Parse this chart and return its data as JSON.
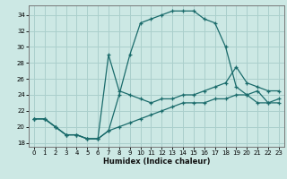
{
  "title": "",
  "xlabel": "Humidex (Indice chaleur)",
  "background_color": "#cce8e4",
  "grid_color": "#aacfcc",
  "line_color": "#1a6b6b",
  "xlim": [
    -0.5,
    23.5
  ],
  "ylim": [
    17.5,
    35.2
  ],
  "xticks": [
    0,
    1,
    2,
    3,
    4,
    5,
    6,
    7,
    8,
    9,
    10,
    11,
    12,
    13,
    14,
    15,
    16,
    17,
    18,
    19,
    20,
    21,
    22,
    23
  ],
  "yticks": [
    18,
    20,
    22,
    24,
    26,
    28,
    30,
    32,
    34
  ],
  "line1_x": [
    0,
    1,
    2,
    3,
    4,
    5,
    6,
    7,
    8,
    9,
    10,
    11,
    12,
    13,
    14,
    15,
    16,
    17,
    18,
    19,
    20,
    21,
    22,
    23
  ],
  "line1_y": [
    21,
    21,
    20,
    19,
    19,
    18.5,
    18.5,
    19.5,
    24,
    29,
    33,
    33.5,
    34,
    34.5,
    34.5,
    34.5,
    33.5,
    33,
    30,
    25,
    24,
    23,
    23,
    23
  ],
  "line2_x": [
    0,
    1,
    2,
    3,
    4,
    5,
    6,
    7,
    8,
    9,
    10,
    11,
    12,
    13,
    14,
    15,
    16,
    17,
    18,
    19,
    20,
    21,
    22,
    23
  ],
  "line2_y": [
    21,
    21,
    20,
    19,
    19,
    18.5,
    18.5,
    29,
    24.5,
    24,
    23.5,
    23,
    23.5,
    23.5,
    24,
    24,
    24.5,
    25,
    25.5,
    27.5,
    25.5,
    25,
    24.5,
    24.5
  ],
  "line3_x": [
    0,
    1,
    2,
    3,
    4,
    5,
    6,
    7,
    8,
    9,
    10,
    11,
    12,
    13,
    14,
    15,
    16,
    17,
    18,
    19,
    20,
    21,
    22,
    23
  ],
  "line3_y": [
    21,
    21,
    20,
    19,
    19,
    18.5,
    18.5,
    19.5,
    20,
    20.5,
    21,
    21.5,
    22,
    22.5,
    23,
    23,
    23,
    23.5,
    23.5,
    24,
    24,
    24.5,
    23,
    23.5
  ]
}
